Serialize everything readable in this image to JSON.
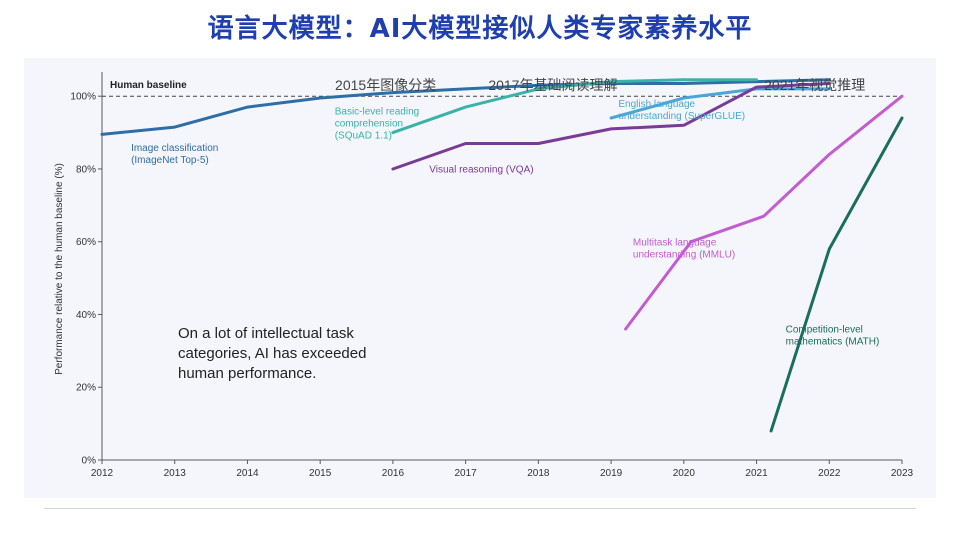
{
  "page": {
    "title": "语言大模型：AI大模型接似人类专家素养水平"
  },
  "chart_data": {
    "type": "line",
    "ylabel": "Performance relative to the human baseline (%)",
    "xlabel": "",
    "ylim": [
      0,
      105
    ],
    "xlim": [
      2012,
      2023
    ],
    "x_ticks": [
      "2012",
      "2013",
      "2014",
      "2015",
      "2016",
      "2017",
      "2018",
      "2019",
      "2020",
      "2021",
      "2022",
      "2023"
    ],
    "y_ticks": [
      {
        "value": 0,
        "label": "0%"
      },
      {
        "value": 20,
        "label": "20%"
      },
      {
        "value": 40,
        "label": "40%"
      },
      {
        "value": 60,
        "label": "60%"
      },
      {
        "value": 80,
        "label": "80%"
      },
      {
        "value": 100,
        "label": "100%"
      }
    ],
    "baseline": {
      "value": 100,
      "label": "Human baseline",
      "style": "dashed"
    },
    "annotation_text": [
      "On a lot of intellectual task",
      "categories, AI has exceeded",
      "human performance."
    ],
    "top_labels": [
      {
        "text": "2015年图像分类",
        "x": 2015.9
      },
      {
        "text": "2017年基础阅读理解",
        "x": 2018.2
      },
      {
        "text": "2021年视觉推理",
        "x": 2021.8
      }
    ],
    "series": [
      {
        "name": "Image classification (ImageNet Top-5)",
        "label_lines": [
          "Image classification",
          "(ImageNet Top-5)"
        ],
        "label_x": 2012.4,
        "label_y": 85,
        "color": "#2d6ea8",
        "x": [
          2012,
          2013,
          2014,
          2015,
          2016,
          2017,
          2018,
          2019,
          2020,
          2021,
          2022
        ],
        "y": [
          89.5,
          91.5,
          97,
          99.5,
          101,
          102,
          103,
          103.5,
          103.5,
          104,
          104.5
        ]
      },
      {
        "name": "Basic-level reading comprehension (SQuAD 1.1)",
        "label_lines": [
          "Basic-level reading",
          "comprehension",
          "(SQuAD 1.1)"
        ],
        "label_x": 2015.2,
        "label_y": 95,
        "color": "#39b3a8",
        "x": [
          2016,
          2017,
          2018,
          2019,
          2020,
          2021
        ],
        "y": [
          90,
          97,
          102,
          104,
          104.5,
          104.5
        ]
      },
      {
        "name": "English language understanding (SuperGLUE)",
        "label_lines": [
          "English language",
          "understanding (SuperGLUE)"
        ],
        "label_x": 2019.1,
        "label_y": 97,
        "color": "#4aa6d6",
        "x": [
          2019,
          2020,
          2021,
          2022
        ],
        "y": [
          94,
          99.5,
          102,
          102
        ]
      },
      {
        "name": "Visual reasoning (VQA)",
        "label_lines": [
          "Visual reasoning (VQA)"
        ],
        "label_x": 2016.5,
        "label_y": 79,
        "color": "#7a3a96",
        "x": [
          2016,
          2017,
          2018,
          2019,
          2020,
          2021,
          2022
        ],
        "y": [
          80,
          87,
          87,
          91,
          92,
          102.5,
          103.5
        ]
      },
      {
        "name": "Multitask language understanding (MMLU)",
        "label_lines": [
          "Multitask language",
          "understanding (MMLU)"
        ],
        "label_x": 2019.3,
        "label_y": 59,
        "color": "#c35ccf",
        "x": [
          2019.2,
          2020.1,
          2021.1,
          2022,
          2023
        ],
        "y": [
          36,
          60,
          67,
          84,
          100
        ]
      },
      {
        "name": "Competition-level mathematics (MATH)",
        "label_lines": [
          "Competition-level",
          "mathematics (MATH)"
        ],
        "label_x": 2021.4,
        "label_y": 35,
        "color": "#1a6e5c",
        "x": [
          2021.2,
          2022,
          2023
        ],
        "y": [
          8,
          58,
          94
        ]
      }
    ]
  }
}
